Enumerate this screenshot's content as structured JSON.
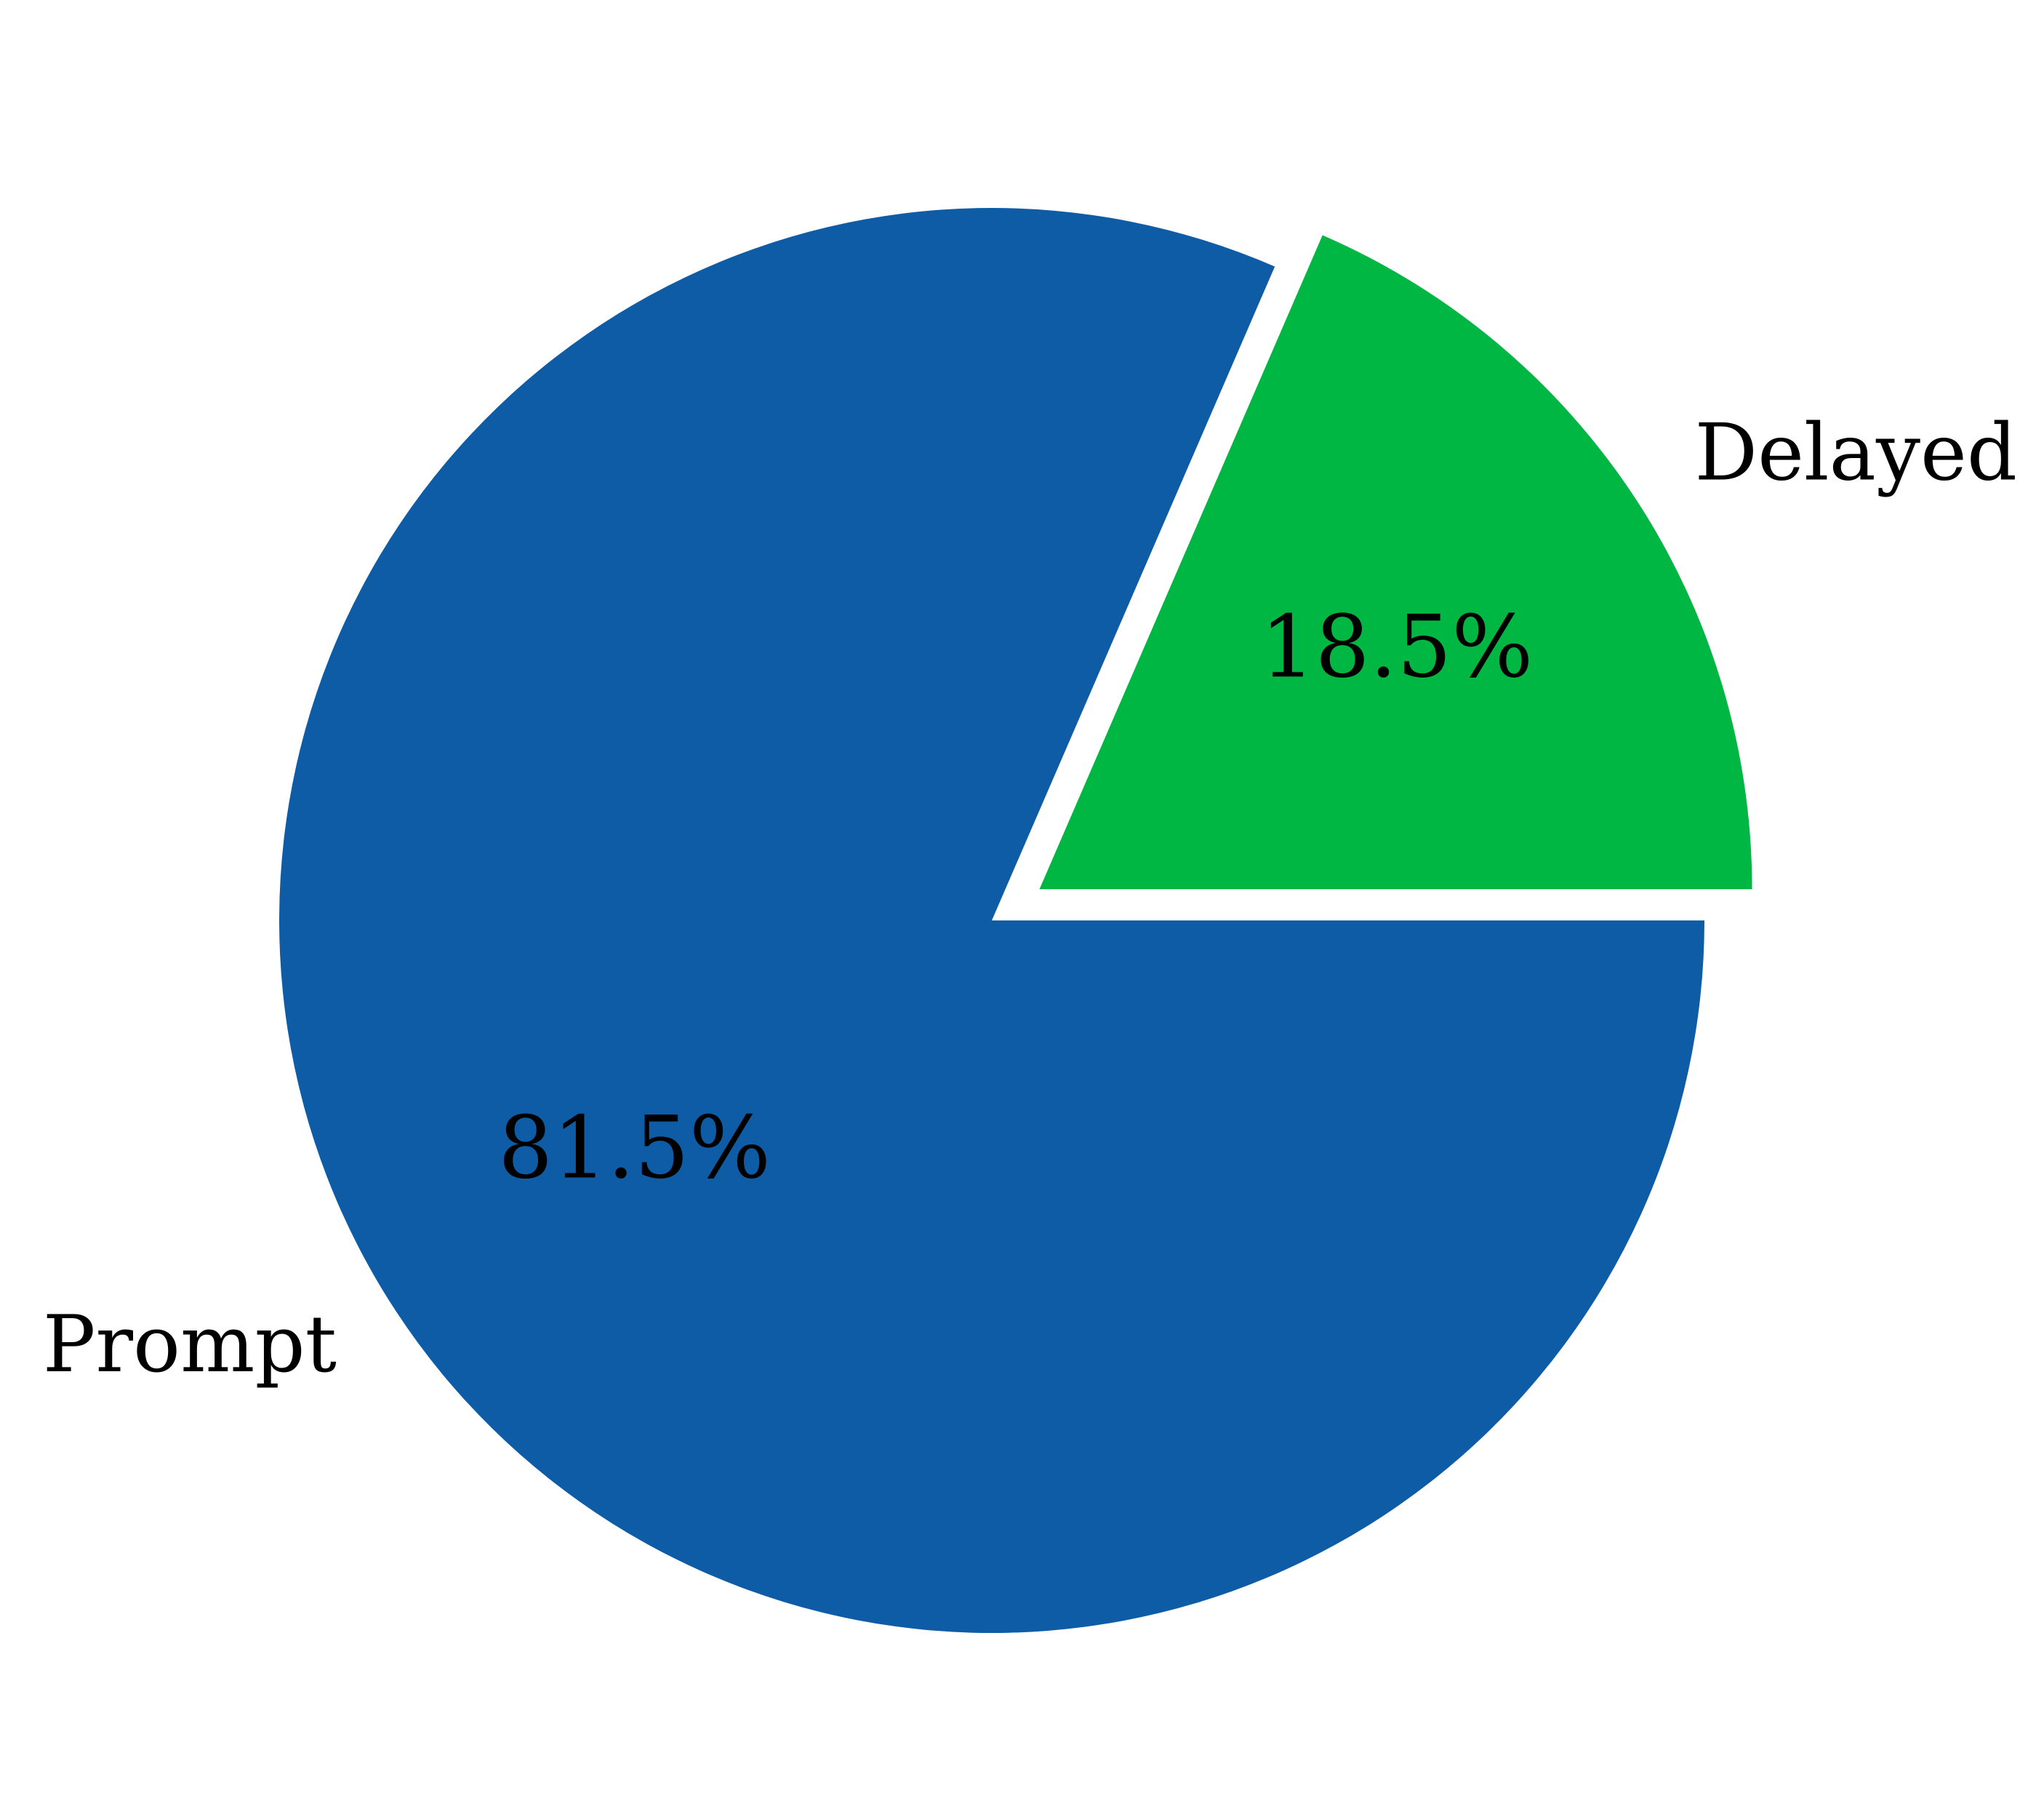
{
  "chart_data": {
    "type": "pie",
    "labels": [
      "Prompt",
      "Delayed"
    ],
    "values": [
      81.5,
      18.5
    ],
    "value_labels": [
      "81.5%",
      "18.5%"
    ],
    "colors": [
      "#0e5ca6",
      "#00b743"
    ],
    "explode": [
      0,
      0.08
    ],
    "start_angle": 0,
    "direction": "clockwise",
    "legend": "none"
  }
}
